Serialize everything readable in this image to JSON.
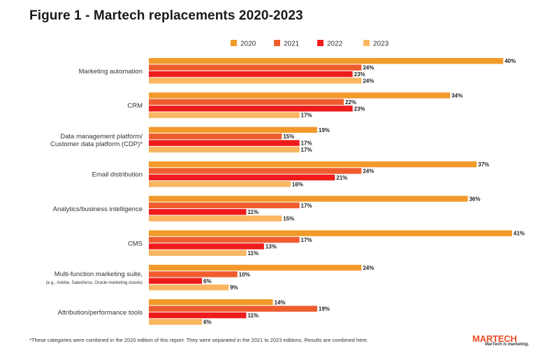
{
  "chart_data": {
    "type": "bar",
    "orientation": "horizontal",
    "title": "Figure 1 - Martech replacements 2020-2023",
    "categories": [
      [
        "Marketing automation"
      ],
      [
        "CRM"
      ],
      [
        "Data management platform/",
        "Customer data platform (CDP)*"
      ],
      [
        "Email distribution"
      ],
      [
        "Analytics/business intelligence"
      ],
      [
        "CMS"
      ],
      [
        "Multi-function marketing suite,",
        "(e.g., Adobe, Salesforce, Oracle marketing clouds)"
      ],
      [
        "Attribution/performance tools"
      ]
    ],
    "series": [
      {
        "name": "2020",
        "color": "#f39a2b",
        "values": [
          40,
          34,
          19,
          37,
          36,
          41,
          24,
          14
        ]
      },
      {
        "name": "2021",
        "color": "#ef5d2f",
        "values": [
          24,
          22,
          15,
          24,
          17,
          17,
          10,
          19
        ]
      },
      {
        "name": "2022",
        "color": "#ee1c1c",
        "values": [
          23,
          23,
          17,
          21,
          11,
          13,
          6,
          11
        ]
      },
      {
        "name": "2023",
        "color": "#fbb662",
        "values": [
          24,
          17,
          17,
          16,
          15,
          11,
          9,
          6
        ]
      }
    ],
    "value_suffix": "%",
    "xlim": [
      0,
      41
    ],
    "legend_position": "top"
  },
  "footnote": "*These categories were combined in the 2020 edition of this report. They were separated in the 2021 to 2023 editions. Results are combined here.",
  "logo": {
    "wordmark": "MARTECH",
    "tagline": "MarTech is marketing."
  }
}
